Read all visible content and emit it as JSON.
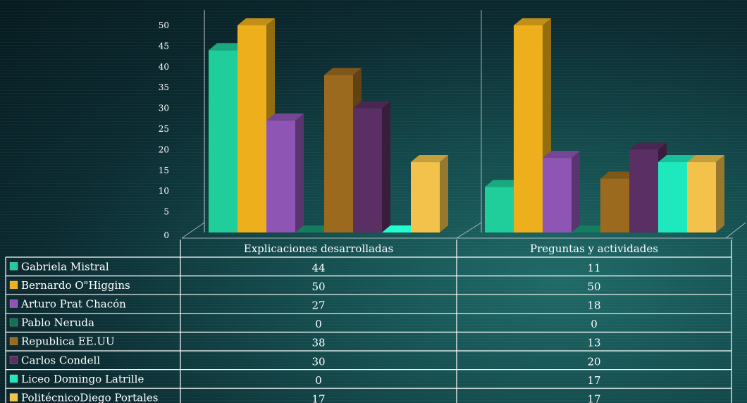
{
  "chart_data": {
    "type": "bar",
    "categories": [
      "Explicaciones desarrolladas",
      "Preguntas y actividades"
    ],
    "series": [
      {
        "name": "Gabriela Mistral",
        "values": [
          44,
          11
        ],
        "color": "#1fce9a"
      },
      {
        "name": "Bernardo O\"Higgins",
        "values": [
          50,
          50
        ],
        "color": "#eeaf1c"
      },
      {
        "name": "Arturo Prat Chacón",
        "values": [
          27,
          18
        ],
        "color": "#8f55b5"
      },
      {
        "name": "Pablo Neruda",
        "values": [
          0,
          0
        ],
        "color": "#137256"
      },
      {
        "name": "Republica EE.UU",
        "values": [
          38,
          13
        ],
        "color": "#9b6a1e"
      },
      {
        "name": "Carlos Condell",
        "values": [
          30,
          20
        ],
        "color": "#5a2f63"
      },
      {
        "name": "Liceo Domingo Latrille",
        "values": [
          0,
          17
        ],
        "color": "#1ee8bd"
      },
      {
        "name": "PolitécnicoDiego Portales",
        "values": [
          17,
          17
        ],
        "color": "#f2c24a"
      }
    ],
    "ylim": [
      0,
      50
    ],
    "yticks": [
      "0",
      "5",
      "10",
      "15",
      "20",
      "25",
      "30",
      "35",
      "40",
      "45",
      "50"
    ],
    "legend": "table-left",
    "data_table": true,
    "table_values": [
      [
        "44",
        "11"
      ],
      [
        "50",
        "50"
      ],
      [
        "27",
        "18"
      ],
      [
        "0",
        "0"
      ],
      [
        "38",
        "13"
      ],
      [
        "30",
        "20"
      ],
      [
        "0",
        "17"
      ],
      [
        "17",
        "17"
      ]
    ]
  }
}
